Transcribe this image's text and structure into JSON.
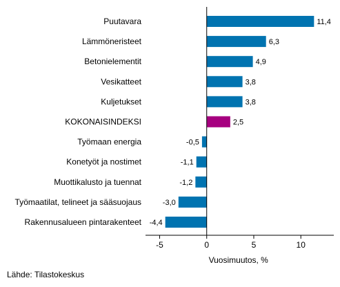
{
  "chart_data": {
    "type": "bar",
    "orientation": "horizontal",
    "categories": [
      "Puutavara",
      "Lämmöneristeet",
      "Betonielementit",
      "Vesikatteet",
      "Kuljetukset",
      "KOKONAISINDEKSI",
      "Työmaan energia",
      "Konetyöt ja nostimet",
      "Muottikalusto ja tuennat",
      "Työmaatilat, telineet ja sääsuojaus",
      "Rakennusalueen pintarakenteet"
    ],
    "values": [
      11.4,
      6.3,
      4.9,
      3.8,
      3.8,
      2.5,
      -0.5,
      -1.1,
      -1.2,
      -3.0,
      -4.4
    ],
    "value_labels": [
      "11,4",
      "6,3",
      "4,9",
      "3,8",
      "3,8",
      "2,5",
      "-0,5",
      "-1,1",
      "-1,2",
      "-3,0",
      "-4,4"
    ],
    "highlight_index": 5,
    "colors": {
      "bar": "#0073b0",
      "highlight": "#a6007f",
      "axis": "#000000",
      "tick_text": "#000000"
    },
    "xlim": [
      -6.5,
      13.5
    ],
    "xticks": [
      -5,
      0,
      5,
      10
    ],
    "xtick_labels": [
      "-5",
      "0",
      "5",
      "10"
    ],
    "xlabel": "Vuosimuutos, %",
    "grid": false,
    "legend": "none"
  },
  "source": "Lähde: Tilastokeskus"
}
